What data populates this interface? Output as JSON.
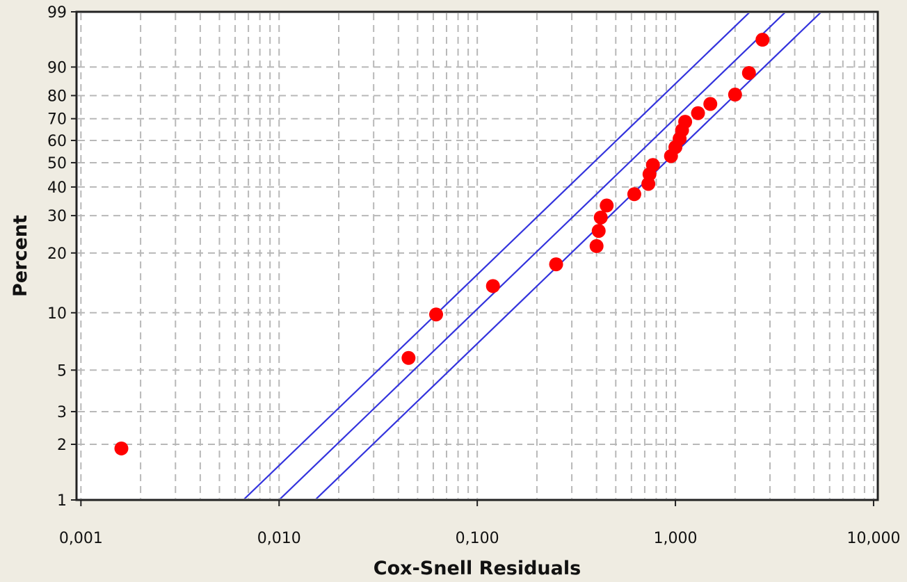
{
  "chart_data": {
    "type": "scatter",
    "title": "",
    "xlabel": "Cox-Snell Residuals",
    "ylabel": "Percent",
    "x_scale": "log",
    "y_scale": "weibull-probability",
    "xlim": [
      0.00095,
      10.5
    ],
    "ylim": [
      1,
      99
    ],
    "x_ticks": [
      {
        "value": 0.001,
        "label": "0,001"
      },
      {
        "value": 0.01,
        "label": "0,010"
      },
      {
        "value": 0.1,
        "label": "0,100"
      },
      {
        "value": 1,
        "label": "1,000"
      },
      {
        "value": 10,
        "label": "10,000"
      }
    ],
    "y_ticks": [
      1,
      2,
      3,
      5,
      10,
      20,
      30,
      40,
      50,
      60,
      70,
      80,
      90,
      99
    ],
    "grid": true,
    "colors": {
      "points": "#ff0000",
      "lines": "#3333dd",
      "grid": "#b8b8b8",
      "plot_background": "#ffffff",
      "page_background": "#efece2"
    },
    "series": [
      {
        "type": "scatter",
        "points": [
          [
            0.0016,
            1.9
          ],
          [
            0.045,
            5.8
          ],
          [
            0.062,
            9.8
          ],
          [
            0.12,
            13.7
          ],
          [
            0.25,
            17.6
          ],
          [
            0.4,
            21.6
          ],
          [
            0.41,
            25.5
          ],
          [
            0.42,
            29.4
          ],
          [
            0.45,
            33.3
          ],
          [
            0.62,
            37.3
          ],
          [
            0.73,
            41.2
          ],
          [
            0.74,
            45.1
          ],
          [
            0.77,
            49.0
          ],
          [
            0.95,
            52.9
          ],
          [
            1.0,
            56.9
          ],
          [
            1.05,
            60.8
          ],
          [
            1.08,
            64.7
          ],
          [
            1.12,
            68.6
          ],
          [
            1.3,
            72.5
          ],
          [
            1.5,
            76.5
          ],
          [
            2.0,
            80.4
          ],
          [
            2.35,
            88.2
          ],
          [
            2.75,
            96.1
          ]
        ]
      },
      {
        "type": "line",
        "points": [
          [
            0.01,
            1
          ],
          [
            3.6,
            99
          ]
        ]
      },
      {
        "type": "line",
        "points": [
          [
            0.0066,
            1
          ],
          [
            2.38,
            99
          ]
        ]
      },
      {
        "type": "line",
        "points": [
          [
            0.0152,
            1
          ],
          [
            5.45,
            99
          ]
        ]
      }
    ]
  }
}
